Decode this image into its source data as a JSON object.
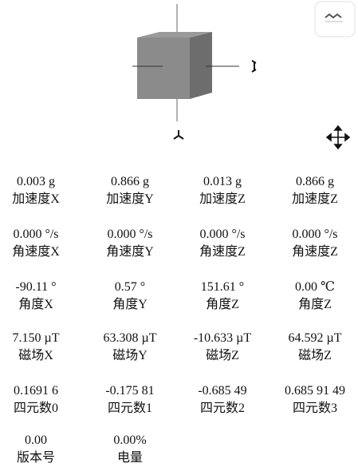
{
  "readings": {
    "rows": [
      [
        {
          "value": "0.003 g",
          "label": "加速度X"
        },
        {
          "value": "0.866 g",
          "label": "加速度Y"
        },
        {
          "value": "0.013 g",
          "label": "加速度Z"
        },
        {
          "value": "0.866 g",
          "label": "加速度Z"
        }
      ],
      [
        {
          "value": "0.000 °/s",
          "label": "角速度X"
        },
        {
          "value": "0.000 °/s",
          "label": "角速度Y"
        },
        {
          "value": "0.000 °/s",
          "label": "角速度Z"
        },
        {
          "value": "0.000 °/s",
          "label": "角速度Z"
        }
      ],
      [
        {
          "value": "-90.11 °",
          "label": "角度X"
        },
        {
          "value": "0.57 °",
          "label": "角度Y"
        },
        {
          "value": "151.61 °",
          "label": "角度Z"
        },
        {
          "value": "0.00 ℃",
          "label": "角度Z"
        }
      ],
      [
        {
          "value": "7.150 µT",
          "label": "磁场X"
        },
        {
          "value": "63.308 µT",
          "label": "磁场Y"
        },
        {
          "value": "-10.633 µT",
          "label": "磁场Z"
        },
        {
          "value": "64.592 µT",
          "label": "磁场Z"
        }
      ],
      [
        {
          "value": "0.1691 6",
          "label": "四元数0"
        },
        {
          "value": "-0.175 81",
          "label": "四元数1"
        },
        {
          "value": "-0.685 49",
          "label": "四元数2"
        },
        {
          "value": "0.685 91 49",
          "label": "四元数3"
        }
      ],
      [
        {
          "value": "0.00",
          "label": "版本号"
        },
        {
          "value": "0.00%",
          "label": "电量"
        }
      ]
    ]
  }
}
